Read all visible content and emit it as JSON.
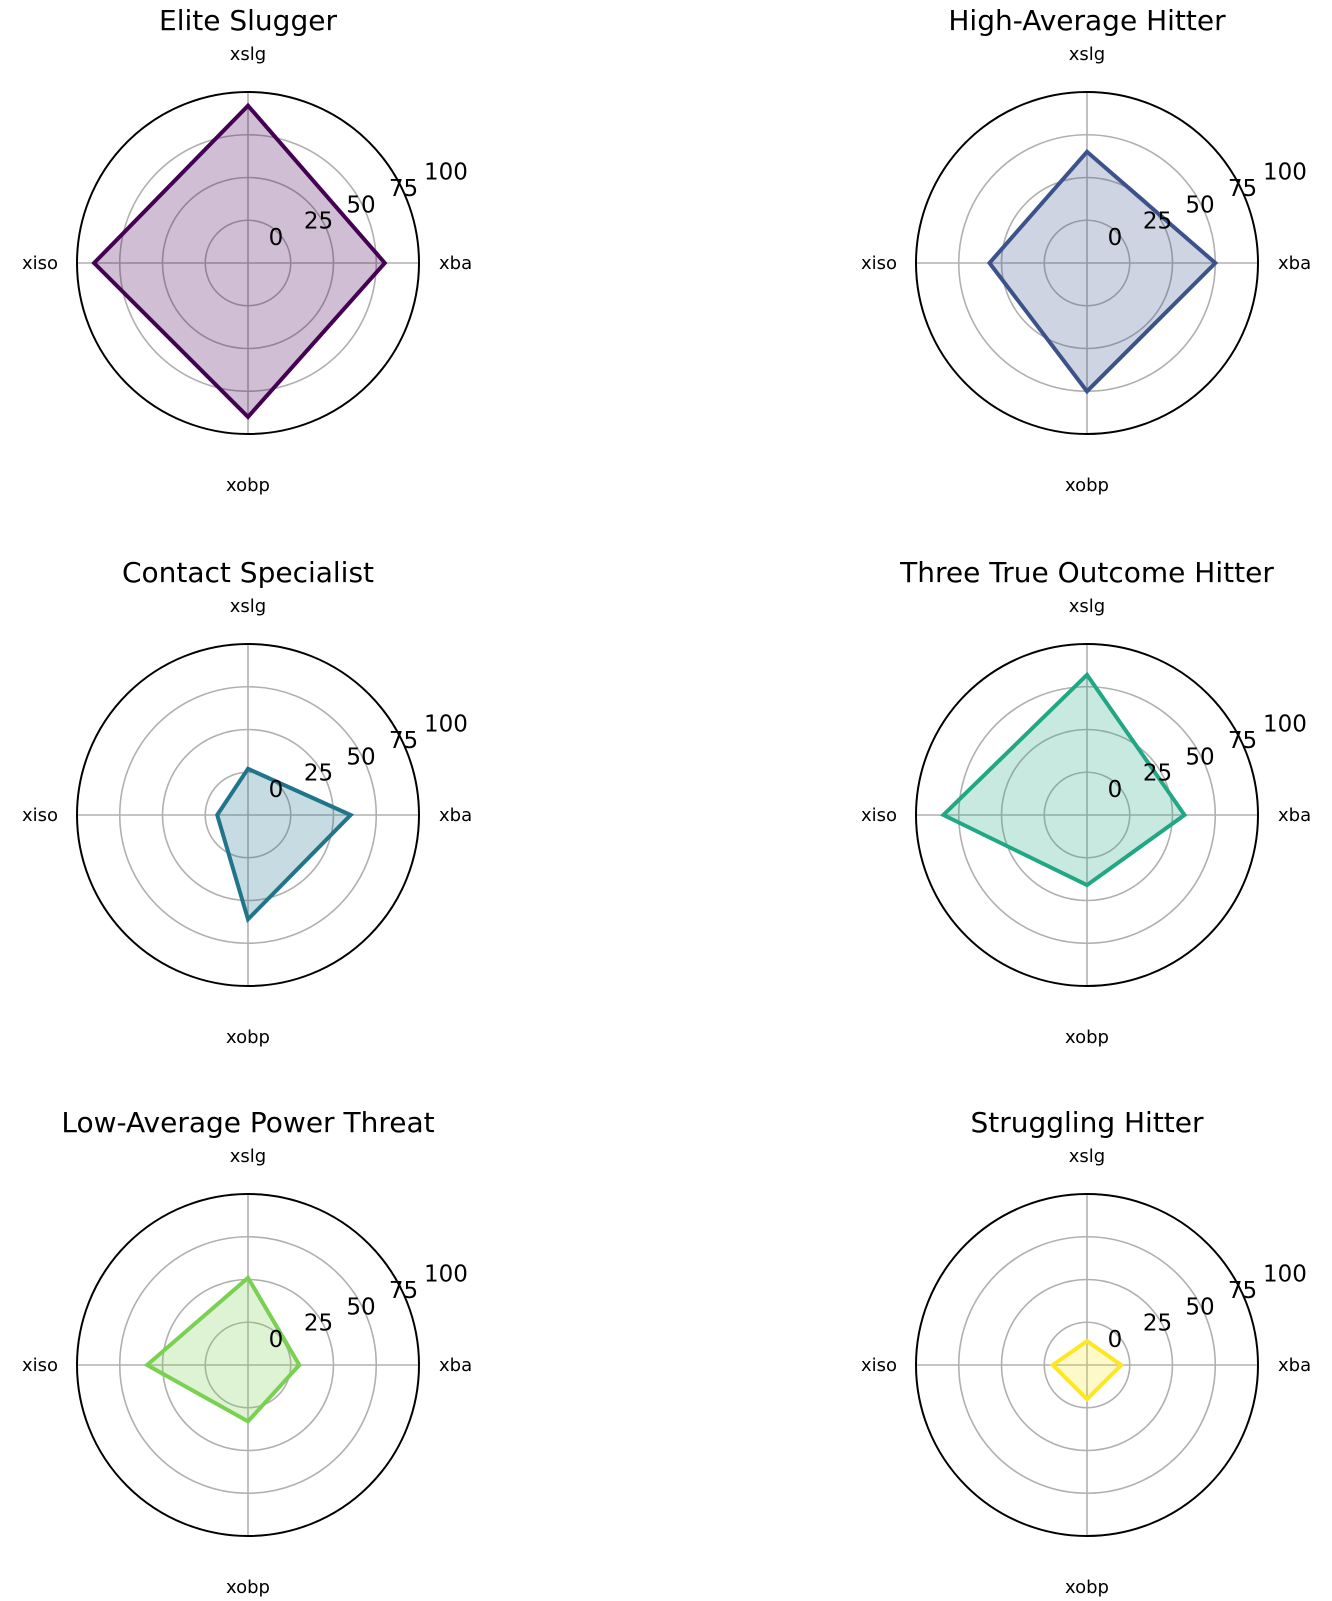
{
  "chart_data": [
    {
      "type": "radar",
      "title": "Elite Slugger",
      "axes": [
        "xba",
        "xslg",
        "xiso",
        "xobp"
      ],
      "values": [
        80,
        92,
        90,
        90
      ],
      "rlim": [
        0,
        100
      ],
      "ticks": [
        "0",
        "25",
        "50",
        "75",
        "100"
      ],
      "color": "#440154",
      "fill": "#440154"
    },
    {
      "type": "radar",
      "title": "High-Average Hitter",
      "axes": [
        "xba",
        "xslg",
        "xiso",
        "xobp"
      ],
      "values": [
        75,
        65,
        57,
        75
      ],
      "rlim": [
        0,
        100
      ],
      "ticks": [
        "0",
        "25",
        "50",
        "75",
        "100"
      ],
      "color": "#3b528b",
      "fill": "#3b528b"
    },
    {
      "type": "radar",
      "title": "Contact Specialist",
      "axes": [
        "xba",
        "xslg",
        "xiso",
        "xobp"
      ],
      "values": [
        60,
        27,
        18,
        61
      ],
      "rlim": [
        0,
        100
      ],
      "ticks": [
        "0",
        "25",
        "50",
        "75",
        "100"
      ],
      "color": "#21758b",
      "fill": "#21758b"
    },
    {
      "type": "radar",
      "title": "Three True Outcome Hitter",
      "axes": [
        "xba",
        "xslg",
        "xiso",
        "xobp"
      ],
      "values": [
        57,
        82,
        84,
        41
      ],
      "rlim": [
        0,
        100
      ],
      "ticks": [
        "0",
        "25",
        "50",
        "75",
        "100"
      ],
      "color": "#22a784",
      "fill": "#22a784"
    },
    {
      "type": "radar",
      "title": "Low-Average Power Threat",
      "axes": [
        "xba",
        "xslg",
        "xiso",
        "xobp"
      ],
      "values": [
        30,
        51,
        59,
        33
      ],
      "rlim": [
        0,
        100
      ],
      "ticks": [
        "0",
        "25",
        "50",
        "75",
        "100"
      ],
      "color": "#7ad151",
      "fill": "#7ad151"
    },
    {
      "type": "radar",
      "title": "Struggling Hitter",
      "axes": [
        "xba",
        "xslg",
        "xiso",
        "xobp"
      ],
      "values": [
        20,
        14,
        20,
        20
      ],
      "rlim": [
        0,
        100
      ],
      "ticks": [
        "0",
        "25",
        "50",
        "75",
        "100"
      ],
      "color": "#fde725",
      "fill": "#fde725"
    }
  ]
}
